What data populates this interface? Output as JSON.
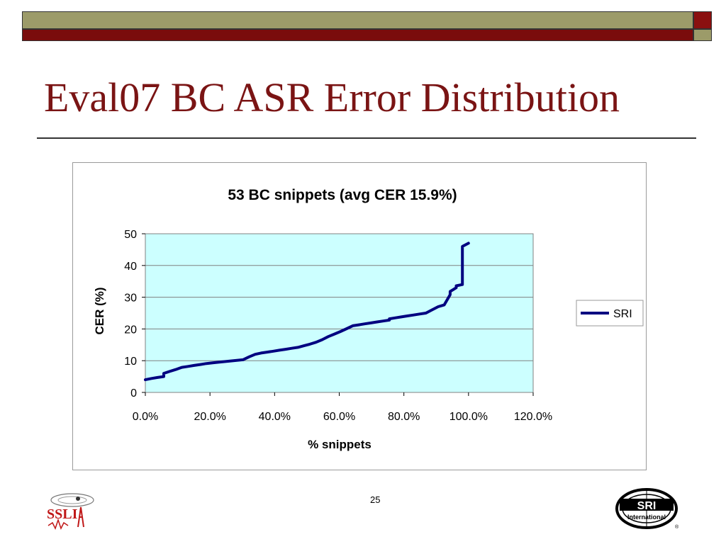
{
  "slide": {
    "title": "Eval07 BC ASR Error Distribution",
    "page_number": "25",
    "colors": {
      "olive": "#9c9b69",
      "maroon": "#7a0c0c",
      "title": "#7a1414",
      "plot_bg": "#ccffff",
      "series": "#000080"
    }
  },
  "logos": {
    "left": {
      "icon": "ssli-logo",
      "text": "SSLI"
    },
    "right": {
      "icon": "sri-international-logo",
      "text": "SRI",
      "subtext": "International"
    }
  },
  "chart_data": {
    "type": "line",
    "title": "53 BC snippets (avg CER 15.9%)",
    "xlabel": "% snippets",
    "ylabel": "CER (%)",
    "xlim": [
      0,
      120
    ],
    "ylim": [
      0,
      50
    ],
    "x_ticks": [
      "0.0%",
      "20.0%",
      "40.0%",
      "60.0%",
      "80.0%",
      "100.0%",
      "120.0%"
    ],
    "y_ticks": [
      "0",
      "10",
      "20",
      "30",
      "40",
      "50"
    ],
    "grid": "horizontal",
    "legend_position": "right",
    "series": [
      {
        "name": "SRI",
        "color": "#000080",
        "x": [
          0,
          1.9,
          3.8,
          5.7,
          5.7,
          7.5,
          9.4,
          11.3,
          13.2,
          15.1,
          17.0,
          18.9,
          20.8,
          22.6,
          24.5,
          26.4,
          28.3,
          30.2,
          32.1,
          34.0,
          35.8,
          37.7,
          39.6,
          41.5,
          43.4,
          45.3,
          47.2,
          49.1,
          50.9,
          52.8,
          54.7,
          56.6,
          58.5,
          60.4,
          62.3,
          64.2,
          66.0,
          67.9,
          69.8,
          71.7,
          73.6,
          75.5,
          75.5,
          77.4,
          79.2,
          81.1,
          83.0,
          84.9,
          86.8,
          88.7,
          90.6,
          92.5,
          94.3,
          94.3,
          96.2,
          96.2,
          98.1,
          98.1,
          100.0
        ],
        "y": [
          4,
          4.4,
          4.7,
          5.0,
          6.0,
          6.6,
          7.2,
          7.9,
          8.2,
          8.5,
          8.8,
          9.1,
          9.3,
          9.5,
          9.7,
          9.9,
          10.1,
          10.3,
          11.2,
          12.0,
          12.4,
          12.7,
          13.0,
          13.3,
          13.6,
          13.9,
          14.2,
          14.7,
          15.2,
          15.8,
          16.6,
          17.6,
          18.4,
          19.2,
          20.1,
          21.0,
          21.3,
          21.6,
          21.9,
          22.2,
          22.5,
          22.8,
          23.2,
          23.5,
          23.8,
          24.1,
          24.4,
          24.7,
          25.0,
          26.0,
          27.0,
          27.6,
          30.8,
          31.8,
          33.0,
          33.6,
          34.0,
          46.0,
          47.0
        ]
      }
    ]
  }
}
